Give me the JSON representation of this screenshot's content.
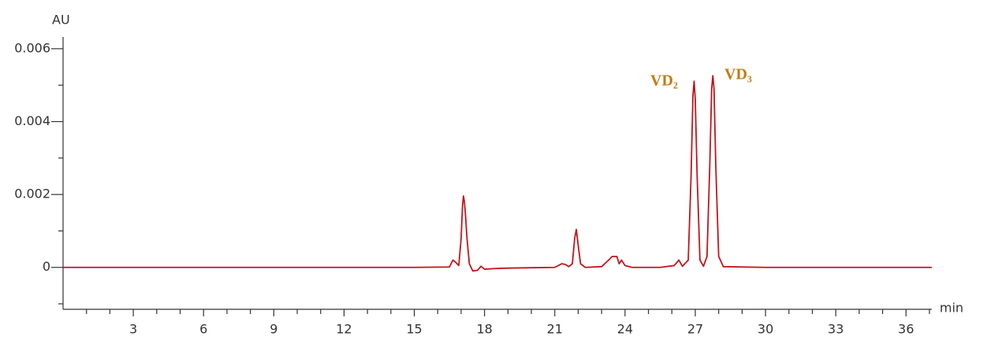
{
  "chart_data": {
    "type": "line",
    "y_label": "AU",
    "x_label": "min",
    "annotations": [
      "VD₂",
      "VD₃"
    ],
    "xlim": [
      0,
      37.1
    ],
    "ylim": [
      -0.00115,
      0.0063
    ],
    "xticks": [
      3,
      6,
      9,
      12,
      15,
      18,
      21,
      24,
      27,
      30,
      33,
      36
    ],
    "xminorticks": [
      1,
      2,
      4,
      5,
      7,
      8,
      10,
      11,
      13,
      14,
      16,
      17,
      19,
      20,
      22,
      23,
      25,
      26,
      28,
      29,
      31,
      32,
      34,
      35,
      37
    ],
    "yticks": [
      0.006,
      0.004,
      0.002,
      0
    ],
    "yminorticks": [
      0.005,
      0.003,
      0.001,
      -0.001
    ],
    "x": [
      0,
      5,
      10,
      15,
      16.5,
      16.65,
      16.75,
      16.9,
      17.0,
      17.06,
      17.1,
      17.14,
      17.18,
      17.25,
      17.35,
      17.5,
      17.7,
      17.85,
      18.0,
      18.5,
      19,
      20,
      21,
      21.3,
      21.45,
      21.6,
      21.75,
      21.85,
      21.92,
      22.0,
      22.1,
      22.3,
      23,
      23.3,
      23.45,
      23.65,
      23.75,
      23.85,
      24.0,
      24.3,
      25.5,
      26.1,
      26.3,
      26.45,
      26.7,
      26.82,
      26.9,
      26.95,
      27.0,
      27.08,
      27.2,
      27.35,
      27.5,
      27.62,
      27.7,
      27.75,
      27.8,
      27.88,
      28.0,
      28.2,
      30,
      33,
      37.1
    ],
    "series": [
      {
        "color": "#c0161c",
        "values": [
          0,
          0,
          0,
          0,
          1e-05,
          0.0002,
          0.00015,
          5e-05,
          0.0008,
          0.0017,
          0.00196,
          0.0018,
          0.0015,
          0.0008,
          0.0001,
          -0.0001,
          -8e-05,
          3e-05,
          -5e-05,
          -3e-05,
          -2e-05,
          -1e-05,
          0,
          0.0001,
          8e-05,
          2e-05,
          0.0001,
          0.0008,
          0.00104,
          0.0006,
          0.0001,
          0,
          2e-05,
          0.0002,
          0.0003,
          0.0003,
          0.0001,
          0.0002,
          5e-05,
          0,
          0,
          5e-05,
          0.0002,
          3e-05,
          0.0002,
          0.0025,
          0.0047,
          0.00511,
          0.0046,
          0.0025,
          0.0002,
          3e-05,
          0.0003,
          0.0028,
          0.0049,
          0.00526,
          0.0049,
          0.0027,
          0.0003,
          2e-05,
          0,
          0,
          0
        ]
      }
    ]
  }
}
